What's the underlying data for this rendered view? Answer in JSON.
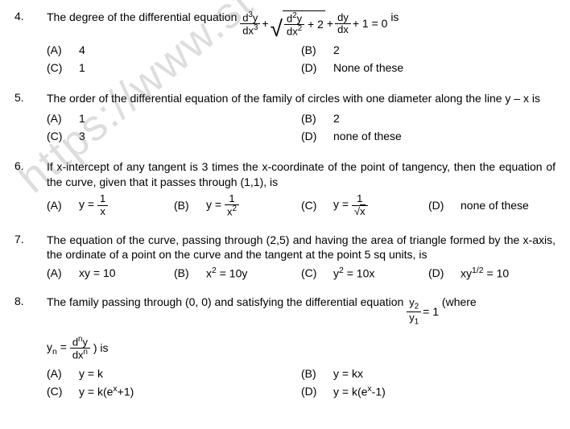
{
  "watermark": "https://www.st",
  "questions": [
    {
      "num": "4.",
      "stem_pre": "The degree of the differential equation ",
      "stem_post": " is",
      "eq": {
        "t1_num": "d<sup>3</sup>y",
        "t1_den": "dx<sup>3</sup>",
        "plus1": "+",
        "sqrt_num": "d<sup>2</sup>y",
        "sqrt_den": "dx<sup>2</sup>",
        "sqrt_tail": "+ 2",
        "plus2": "+",
        "t3_num": "dy",
        "t3_den": "dx",
        "tail": "+ 1 = 0"
      },
      "opts": [
        {
          "l": "(A)",
          "t": "4"
        },
        {
          "l": "(B)",
          "t": "2"
        },
        {
          "l": "(C)",
          "t": "1"
        },
        {
          "l": "(D)",
          "t": "None of these"
        }
      ]
    },
    {
      "num": "5.",
      "stem": "The order of the differential equation of the family of circles with one diameter along the line y – x is",
      "opts": [
        {
          "l": "(A)",
          "t": "1"
        },
        {
          "l": "(B)",
          "t": "2"
        },
        {
          "l": "(C)",
          "t": "3"
        },
        {
          "l": "(D)",
          "t": "none of these"
        }
      ]
    },
    {
      "num": "6.",
      "stem": "If x-intercept of any tangent is 3 times the x-coordinate of the point of tangency, then the equation of the curve, given that it passes through (1,1), is",
      "opts4": [
        {
          "l": "(A)",
          "pre": "y = ",
          "num": "1",
          "den": "x"
        },
        {
          "l": "(B)",
          "pre": "y = ",
          "num": "1",
          "den": "x<sup>2</sup>"
        },
        {
          "l": "(C)",
          "pre": "y = ",
          "num": "1",
          "den_sqrt": "x"
        },
        {
          "l": "(D)",
          "plain": "none of these"
        }
      ]
    },
    {
      "num": "7.",
      "stem": "The equation of the curve, passing through (2,5) and having the area of triangle formed by the x-axis, the ordinate of a point on the curve and the tangent at the point 5 sq units, is",
      "opts4": [
        {
          "l": "(A)",
          "plain": "xy = 10"
        },
        {
          "l": "(B)",
          "plain": "x<sup>2</sup> = 10y"
        },
        {
          "l": "(C)",
          "plain": "y<sup>2</sup> = 10x"
        },
        {
          "l": "(D)",
          "plain": "xy<sup>1/2</sup> = 10"
        }
      ]
    },
    {
      "num": "8.",
      "stem_pre": "The family passing through (0, 0) and satisfying the differential equation ",
      "eq1": {
        "num": "y<sub>2</sub>",
        "den": "y<sub>1</sub>",
        "tail": "= 1"
      },
      "stem_mid": " (where",
      "line2_pre": "y<sub>n</sub> = ",
      "eq2": {
        "num": "d<sup>n</sup>y",
        "den": "dx<sup>n</sup>"
      },
      "line2_post": ")  is",
      "opts": [
        {
          "l": "(A)",
          "t": "y = k"
        },
        {
          "l": "(B)",
          "t": "y = kx"
        },
        {
          "l": "(C)",
          "t": "y = k(e<sup>x</sup>+1)"
        },
        {
          "l": "(D)",
          "t": "y = k(e<sup>x</sup>-1)"
        }
      ]
    }
  ]
}
